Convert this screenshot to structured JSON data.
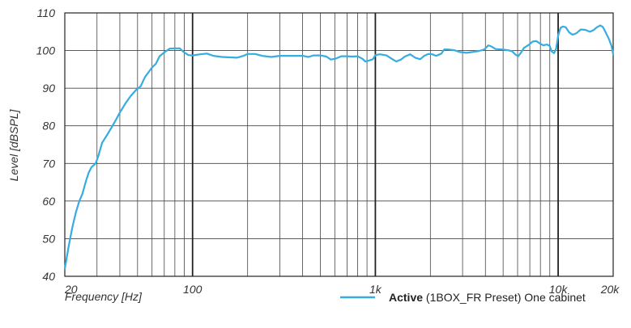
{
  "chart_data": {
    "type": "line",
    "xscale": "log",
    "xlim": [
      20,
      20000
    ],
    "ylim": [
      40,
      110
    ],
    "grid": true,
    "xlabel": "Frequency [Hz]",
    "ylabel": "Level [dBSPL]",
    "x_tick_labels": [
      {
        "value": 20,
        "label": "20"
      },
      {
        "value": 100,
        "label": "100"
      },
      {
        "value": 1000,
        "label": "1k"
      },
      {
        "value": 10000,
        "label": "10k"
      },
      {
        "value": 20000,
        "label": "20k"
      }
    ],
    "y_tick_labels": [
      {
        "value": 110,
        "label": "110"
      },
      {
        "value": 100,
        "label": "100"
      },
      {
        "value": 90,
        "label": "90"
      },
      {
        "value": 80,
        "label": "80"
      },
      {
        "value": 70,
        "label": "70"
      },
      {
        "value": 60,
        "label": "60"
      },
      {
        "value": 50,
        "label": "50"
      },
      {
        "value": 40,
        "label": "40"
      }
    ],
    "legend": {
      "placement": "bottom-right",
      "bold": "Active",
      "rest": " (1BOX_FR Preset) One cabinet"
    },
    "series": [
      {
        "name": "Active (1BOX_FR Preset) One cabinet",
        "color": "#36ACE0",
        "points": [
          [
            20,
            42
          ],
          [
            21,
            48
          ],
          [
            22,
            53
          ],
          [
            23,
            57
          ],
          [
            24,
            60
          ],
          [
            25,
            62
          ],
          [
            26,
            65
          ],
          [
            27,
            67.5
          ],
          [
            28,
            69
          ],
          [
            29.5,
            70
          ],
          [
            30.5,
            72
          ],
          [
            32,
            75.5
          ],
          [
            34,
            77.5
          ],
          [
            36,
            79.5
          ],
          [
            38,
            81.5
          ],
          [
            40,
            83.5
          ],
          [
            43,
            86
          ],
          [
            46,
            88
          ],
          [
            49,
            89.5
          ],
          [
            52,
            90.5
          ],
          [
            55,
            93
          ],
          [
            58,
            94.5
          ],
          [
            60,
            95.5
          ],
          [
            63,
            96.5
          ],
          [
            66,
            98.5
          ],
          [
            70,
            99.5
          ],
          [
            75,
            100.5
          ],
          [
            80,
            100.6
          ],
          [
            85,
            100.6
          ],
          [
            90,
            99.5
          ],
          [
            95,
            98.8
          ],
          [
            100,
            98.7
          ],
          [
            110,
            99
          ],
          [
            120,
            99.2
          ],
          [
            130,
            98.6
          ],
          [
            145,
            98.3
          ],
          [
            160,
            98.2
          ],
          [
            175,
            98.1
          ],
          [
            190,
            98.6
          ],
          [
            200,
            99.1
          ],
          [
            220,
            99.1
          ],
          [
            240,
            98.6
          ],
          [
            270,
            98.3
          ],
          [
            300,
            98.6
          ],
          [
            330,
            98.6
          ],
          [
            360,
            98.6
          ],
          [
            400,
            98.6
          ],
          [
            430,
            98.3
          ],
          [
            460,
            98.7
          ],
          [
            500,
            98.7
          ],
          [
            540,
            98.4
          ],
          [
            570,
            97.6
          ],
          [
            610,
            97.9
          ],
          [
            650,
            98.5
          ],
          [
            700,
            98.5
          ],
          [
            750,
            98.4
          ],
          [
            800,
            98.5
          ],
          [
            850,
            97.8
          ],
          [
            880,
            97.1
          ],
          [
            920,
            97.3
          ],
          [
            970,
            97.7
          ],
          [
            1000,
            98.8
          ],
          [
            1060,
            99
          ],
          [
            1150,
            98.7
          ],
          [
            1230,
            97.8
          ],
          [
            1300,
            97.1
          ],
          [
            1380,
            97.6
          ],
          [
            1450,
            98.4
          ],
          [
            1550,
            99
          ],
          [
            1650,
            98.1
          ],
          [
            1760,
            97.7
          ],
          [
            1850,
            98.6
          ],
          [
            1950,
            99.1
          ],
          [
            2050,
            99
          ],
          [
            2150,
            98.6
          ],
          [
            2300,
            99.2
          ],
          [
            2380,
            100.3
          ],
          [
            2500,
            100.3
          ],
          [
            2700,
            100.1
          ],
          [
            2900,
            99.6
          ],
          [
            3150,
            99.4
          ],
          [
            3400,
            99.6
          ],
          [
            3700,
            99.9
          ],
          [
            3950,
            100.3
          ],
          [
            4150,
            101.4
          ],
          [
            4300,
            101.1
          ],
          [
            4550,
            100.4
          ],
          [
            4900,
            100.3
          ],
          [
            5300,
            100.1
          ],
          [
            5600,
            99.8
          ],
          [
            5850,
            98.9
          ],
          [
            6050,
            98.5
          ],
          [
            6250,
            99.4
          ],
          [
            6500,
            100.7
          ],
          [
            6700,
            101.1
          ],
          [
            6950,
            101.6
          ],
          [
            7250,
            102.4
          ],
          [
            7600,
            102.5
          ],
          [
            8000,
            101.8
          ],
          [
            8300,
            101.4
          ],
          [
            8700,
            101.6
          ],
          [
            9000,
            101.2
          ],
          [
            9200,
            99.8
          ],
          [
            9500,
            99.3
          ],
          [
            9750,
            100.5
          ],
          [
            10000,
            104
          ],
          [
            10300,
            106
          ],
          [
            10600,
            106.4
          ],
          [
            11000,
            106.2
          ],
          [
            11500,
            104.8
          ],
          [
            12000,
            104.2
          ],
          [
            12600,
            104.6
          ],
          [
            13300,
            105.6
          ],
          [
            14100,
            105.5
          ],
          [
            14900,
            105
          ],
          [
            15600,
            105.4
          ],
          [
            16300,
            106.2
          ],
          [
            17000,
            106.7
          ],
          [
            17600,
            106.2
          ],
          [
            18200,
            104.8
          ],
          [
            18900,
            103.2
          ],
          [
            19600,
            101.2
          ],
          [
            20000,
            99
          ]
        ]
      }
    ]
  }
}
